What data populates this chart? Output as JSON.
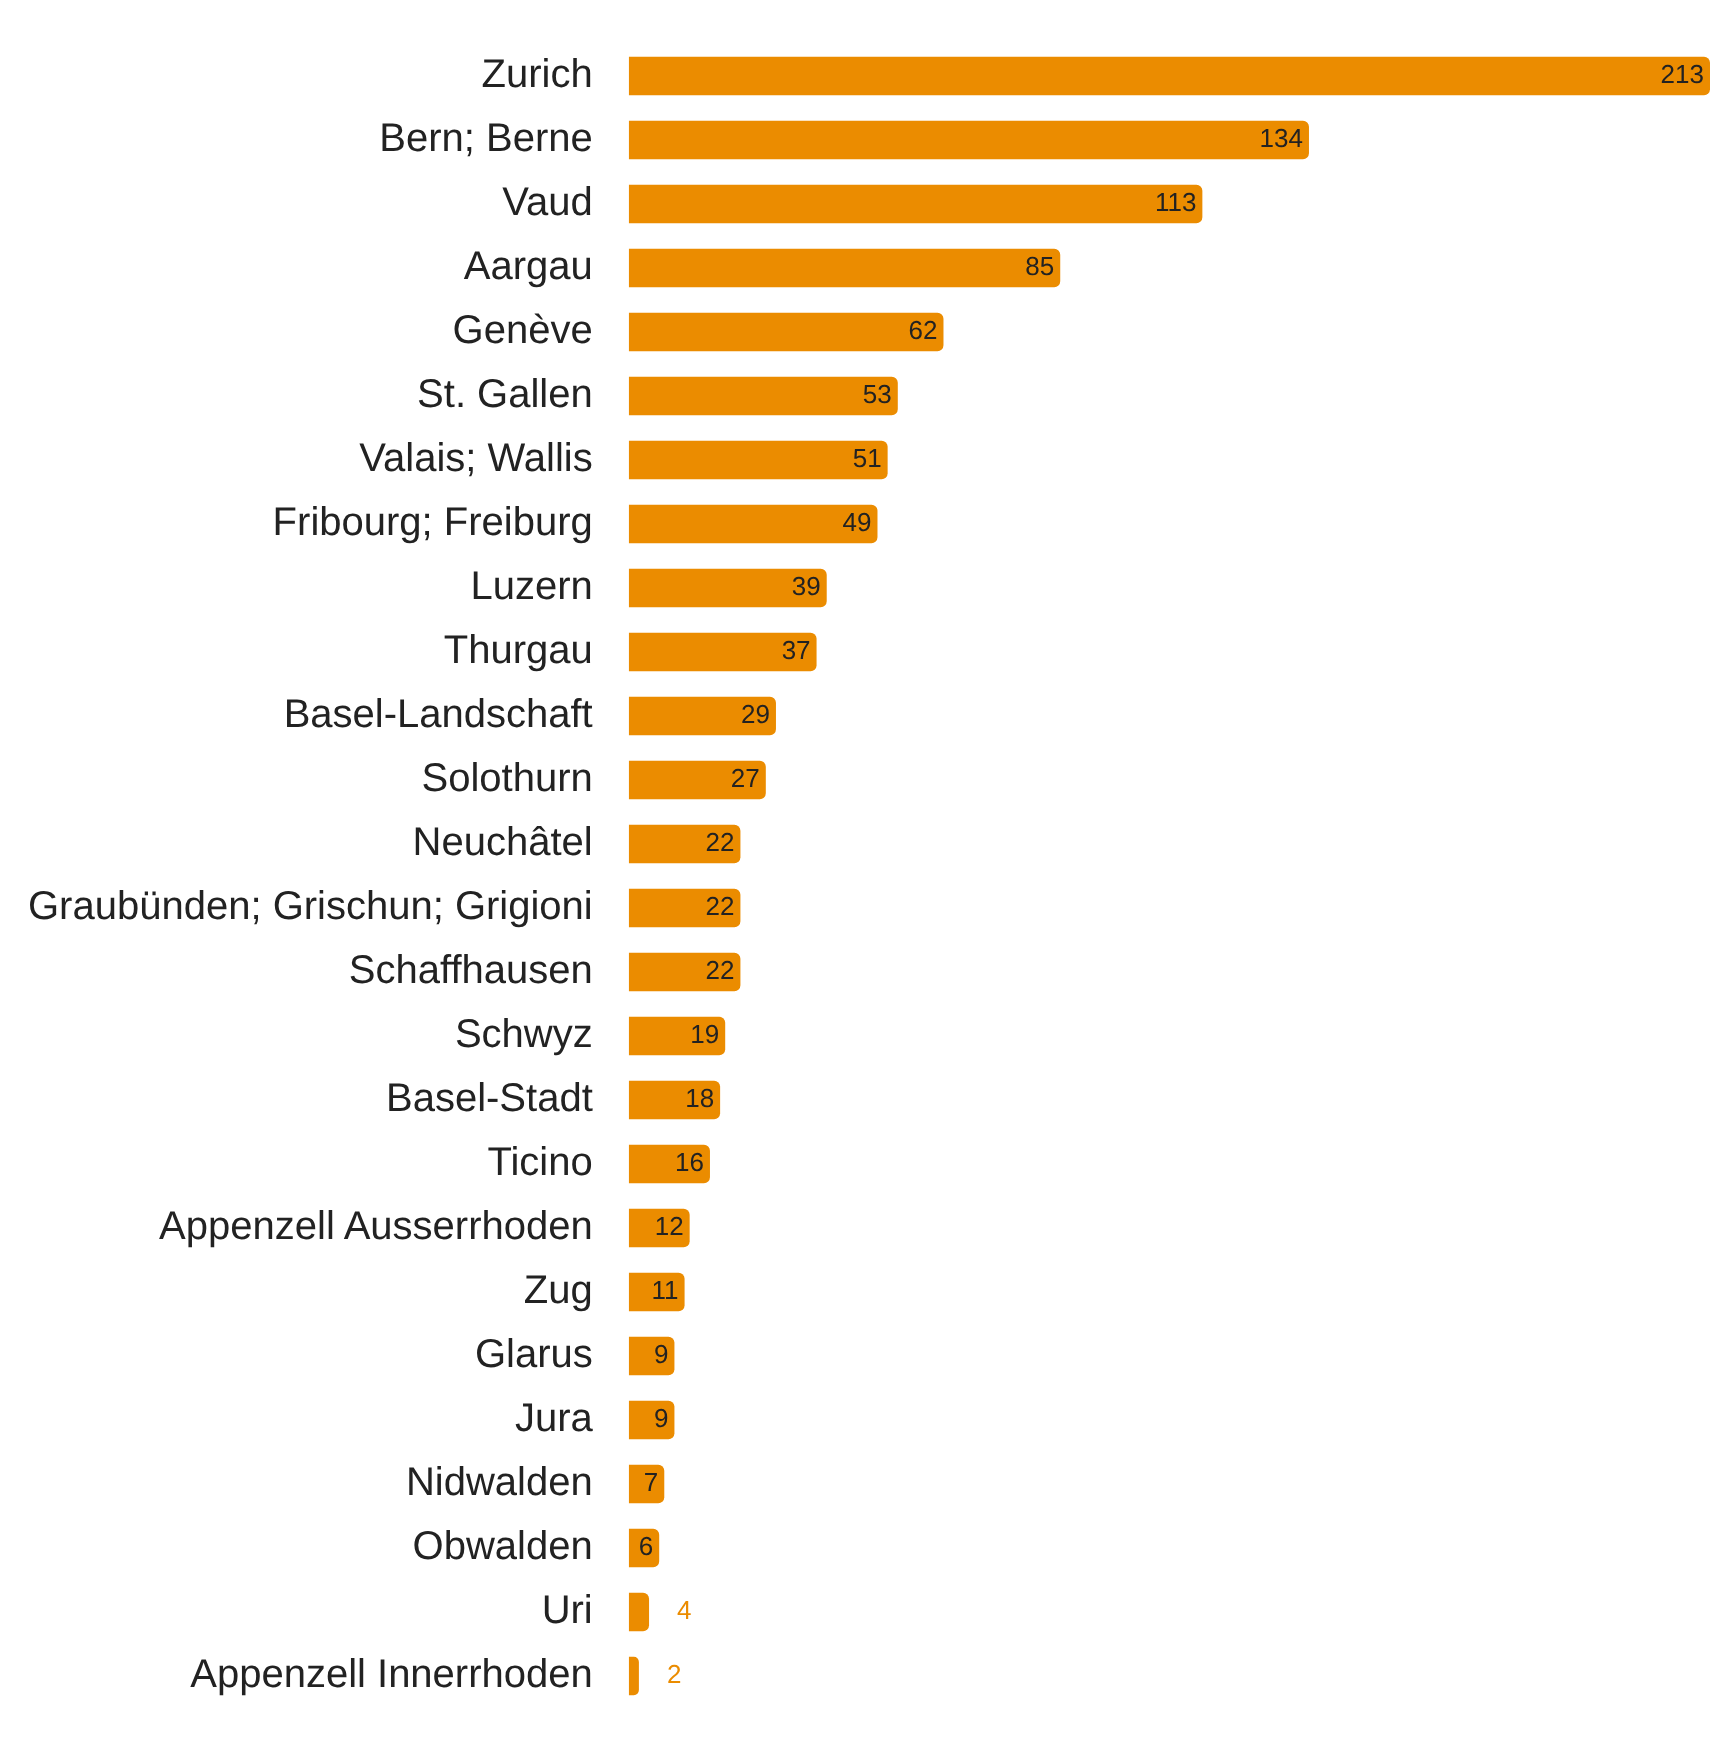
{
  "chart_data": {
    "type": "bar",
    "orientation": "horizontal",
    "categories": [
      "Zurich",
      "Bern; Berne",
      "Vaud",
      "Aargau",
      "Genève",
      "St. Gallen",
      "Valais; Wallis",
      "Fribourg; Freiburg",
      "Luzern",
      "Thurgau",
      "Basel-Landschaft",
      "Solothurn",
      "Neuchâtel",
      "Graubünden; Grischun; Grigioni",
      "Schaffhausen",
      "Schwyz",
      "Basel-Stadt",
      "Ticino",
      "Appenzell Ausserrhoden",
      "Zug",
      "Glarus",
      "Jura",
      "Nidwalden",
      "Obwalden",
      "Uri",
      "Appenzell Innerrhoden"
    ],
    "values": [
      213,
      134,
      113,
      85,
      62,
      53,
      51,
      49,
      39,
      37,
      29,
      27,
      22,
      22,
      22,
      19,
      18,
      16,
      12,
      11,
      9,
      9,
      7,
      6,
      4,
      2
    ],
    "color": "#eb8c00",
    "data_labels": true,
    "tick_labels": "y"
  }
}
